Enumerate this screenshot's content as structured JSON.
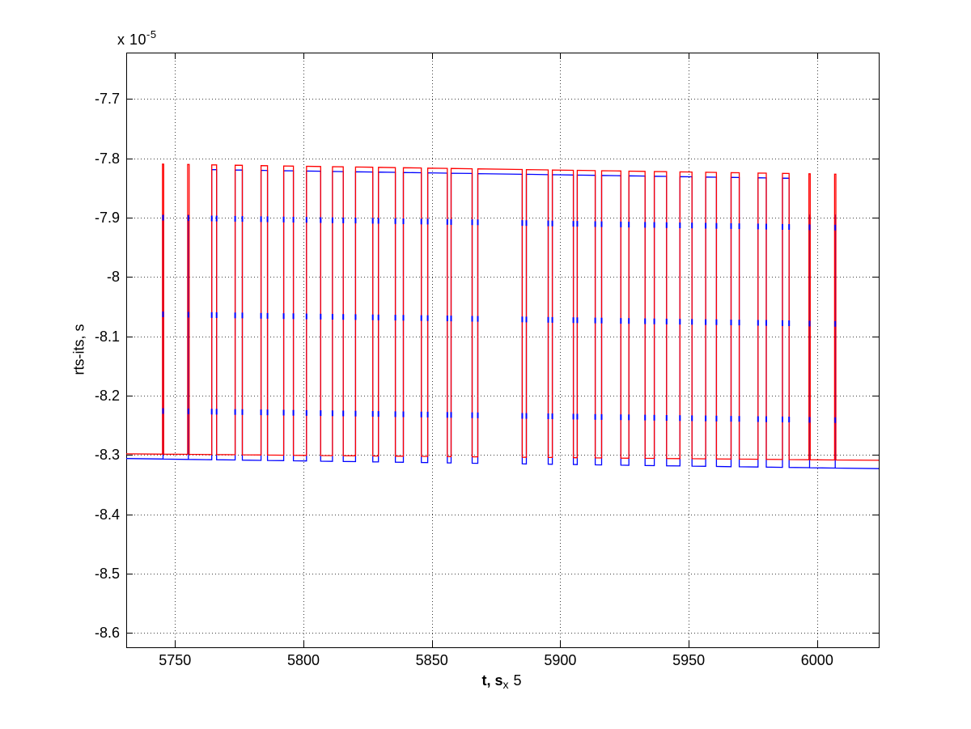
{
  "figure": {
    "background": "#ffffff",
    "y_exponent_label": {
      "prefix": "x 10",
      "exponent": "-5"
    },
    "ylabel": "rts-its, s",
    "xlabel": {
      "main": "t, s",
      "sub": "x",
      "tail": "5"
    }
  },
  "chart_data": {
    "type": "line",
    "title": "",
    "xlabel": "t, s x 5",
    "ylabel": "rts-its, s",
    "y_unit_scale": "1e-5",
    "xlim": [
      5731,
      6024
    ],
    "ylim": [
      -8.624,
      -7.622
    ],
    "xticks": [
      5750,
      5800,
      5850,
      5900,
      5950,
      6000
    ],
    "xtick_labels": [
      "5750",
      "5800",
      "5850",
      "5900",
      "5950",
      "6000"
    ],
    "yticks": [
      -7.7,
      -7.8,
      -7.9,
      -8.0,
      -8.1,
      -8.2,
      -8.3,
      -8.4,
      -8.5,
      -8.6
    ],
    "ytick_labels": [
      "-7.7",
      "-7.8",
      "-7.9",
      "-8",
      "-8.1",
      "-8.2",
      "-8.3",
      "-8.4",
      "-8.5",
      "-8.6"
    ],
    "grid": {
      "style": "dotted",
      "color": "#3c3c3c"
    },
    "axis_color": "#000000",
    "series": [
      {
        "name": "red-series",
        "color": "#ff0000",
        "top_level_start": -7.809,
        "top_level_end": -7.828,
        "base_level_start": -8.298,
        "base_level_end": -8.309
      },
      {
        "name": "blue-series",
        "color": "#0000ff",
        "top_offset": -0.008,
        "base_offset_start": -0.008,
        "base_offset_end": -0.014,
        "spike_peak_level": -7.895,
        "spike_width_threshold": 1.2,
        "edge_mark_fractions": [
          0.167,
          0.5,
          0.833
        ]
      }
    ],
    "pulse_high_intervals": [
      [
        5745.1,
        5745.6
      ],
      [
        5754.9,
        5755.5
      ],
      [
        5764.3,
        5766.2
      ],
      [
        5773.4,
        5776.2
      ],
      [
        5783.5,
        5786.0
      ],
      [
        5792.3,
        5796.1
      ],
      [
        5801.2,
        5806.7
      ],
      [
        5811.3,
        5815.5
      ],
      [
        5820.3,
        5827.0
      ],
      [
        5829.2,
        5835.8
      ],
      [
        5838.9,
        5845.9
      ],
      [
        5848.4,
        5856.0
      ],
      [
        5857.5,
        5865.7
      ],
      [
        5867.9,
        5885.2
      ],
      [
        5886.8,
        5895.3
      ],
      [
        5896.9,
        5905.1
      ],
      [
        5906.6,
        5913.6
      ],
      [
        5916.1,
        5923.6
      ],
      [
        5926.7,
        5933.0
      ],
      [
        5936.6,
        5941.4
      ],
      [
        5946.6,
        5951.3
      ],
      [
        5956.6,
        5960.8
      ],
      [
        5966.5,
        5969.7
      ],
      [
        5977.0,
        5980.2
      ],
      [
        5986.5,
        5989.1
      ],
      [
        5996.8,
        5997.3
      ],
      [
        6006.8,
        6007.3
      ]
    ]
  }
}
